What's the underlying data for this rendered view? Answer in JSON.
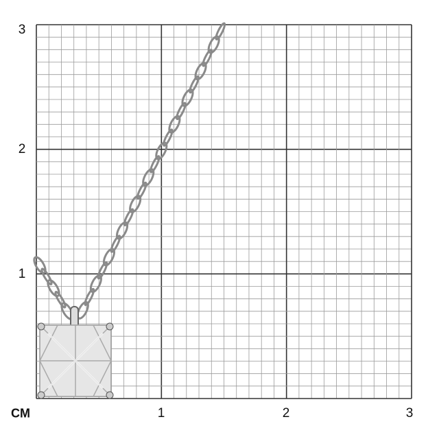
{
  "unit_label": "CM",
  "y_axis_labels": [
    "1",
    "2",
    "3"
  ],
  "x_axis_labels": [
    "1",
    "2",
    "3"
  ],
  "grid": {
    "range_cm": [
      0,
      3
    ],
    "major_step_cm": 1,
    "minor_step_cm": 0.1
  },
  "colors": {
    "major_line": "#333333",
    "minor_line": "#9a9a9a",
    "metal": "#8a8a8a"
  }
}
